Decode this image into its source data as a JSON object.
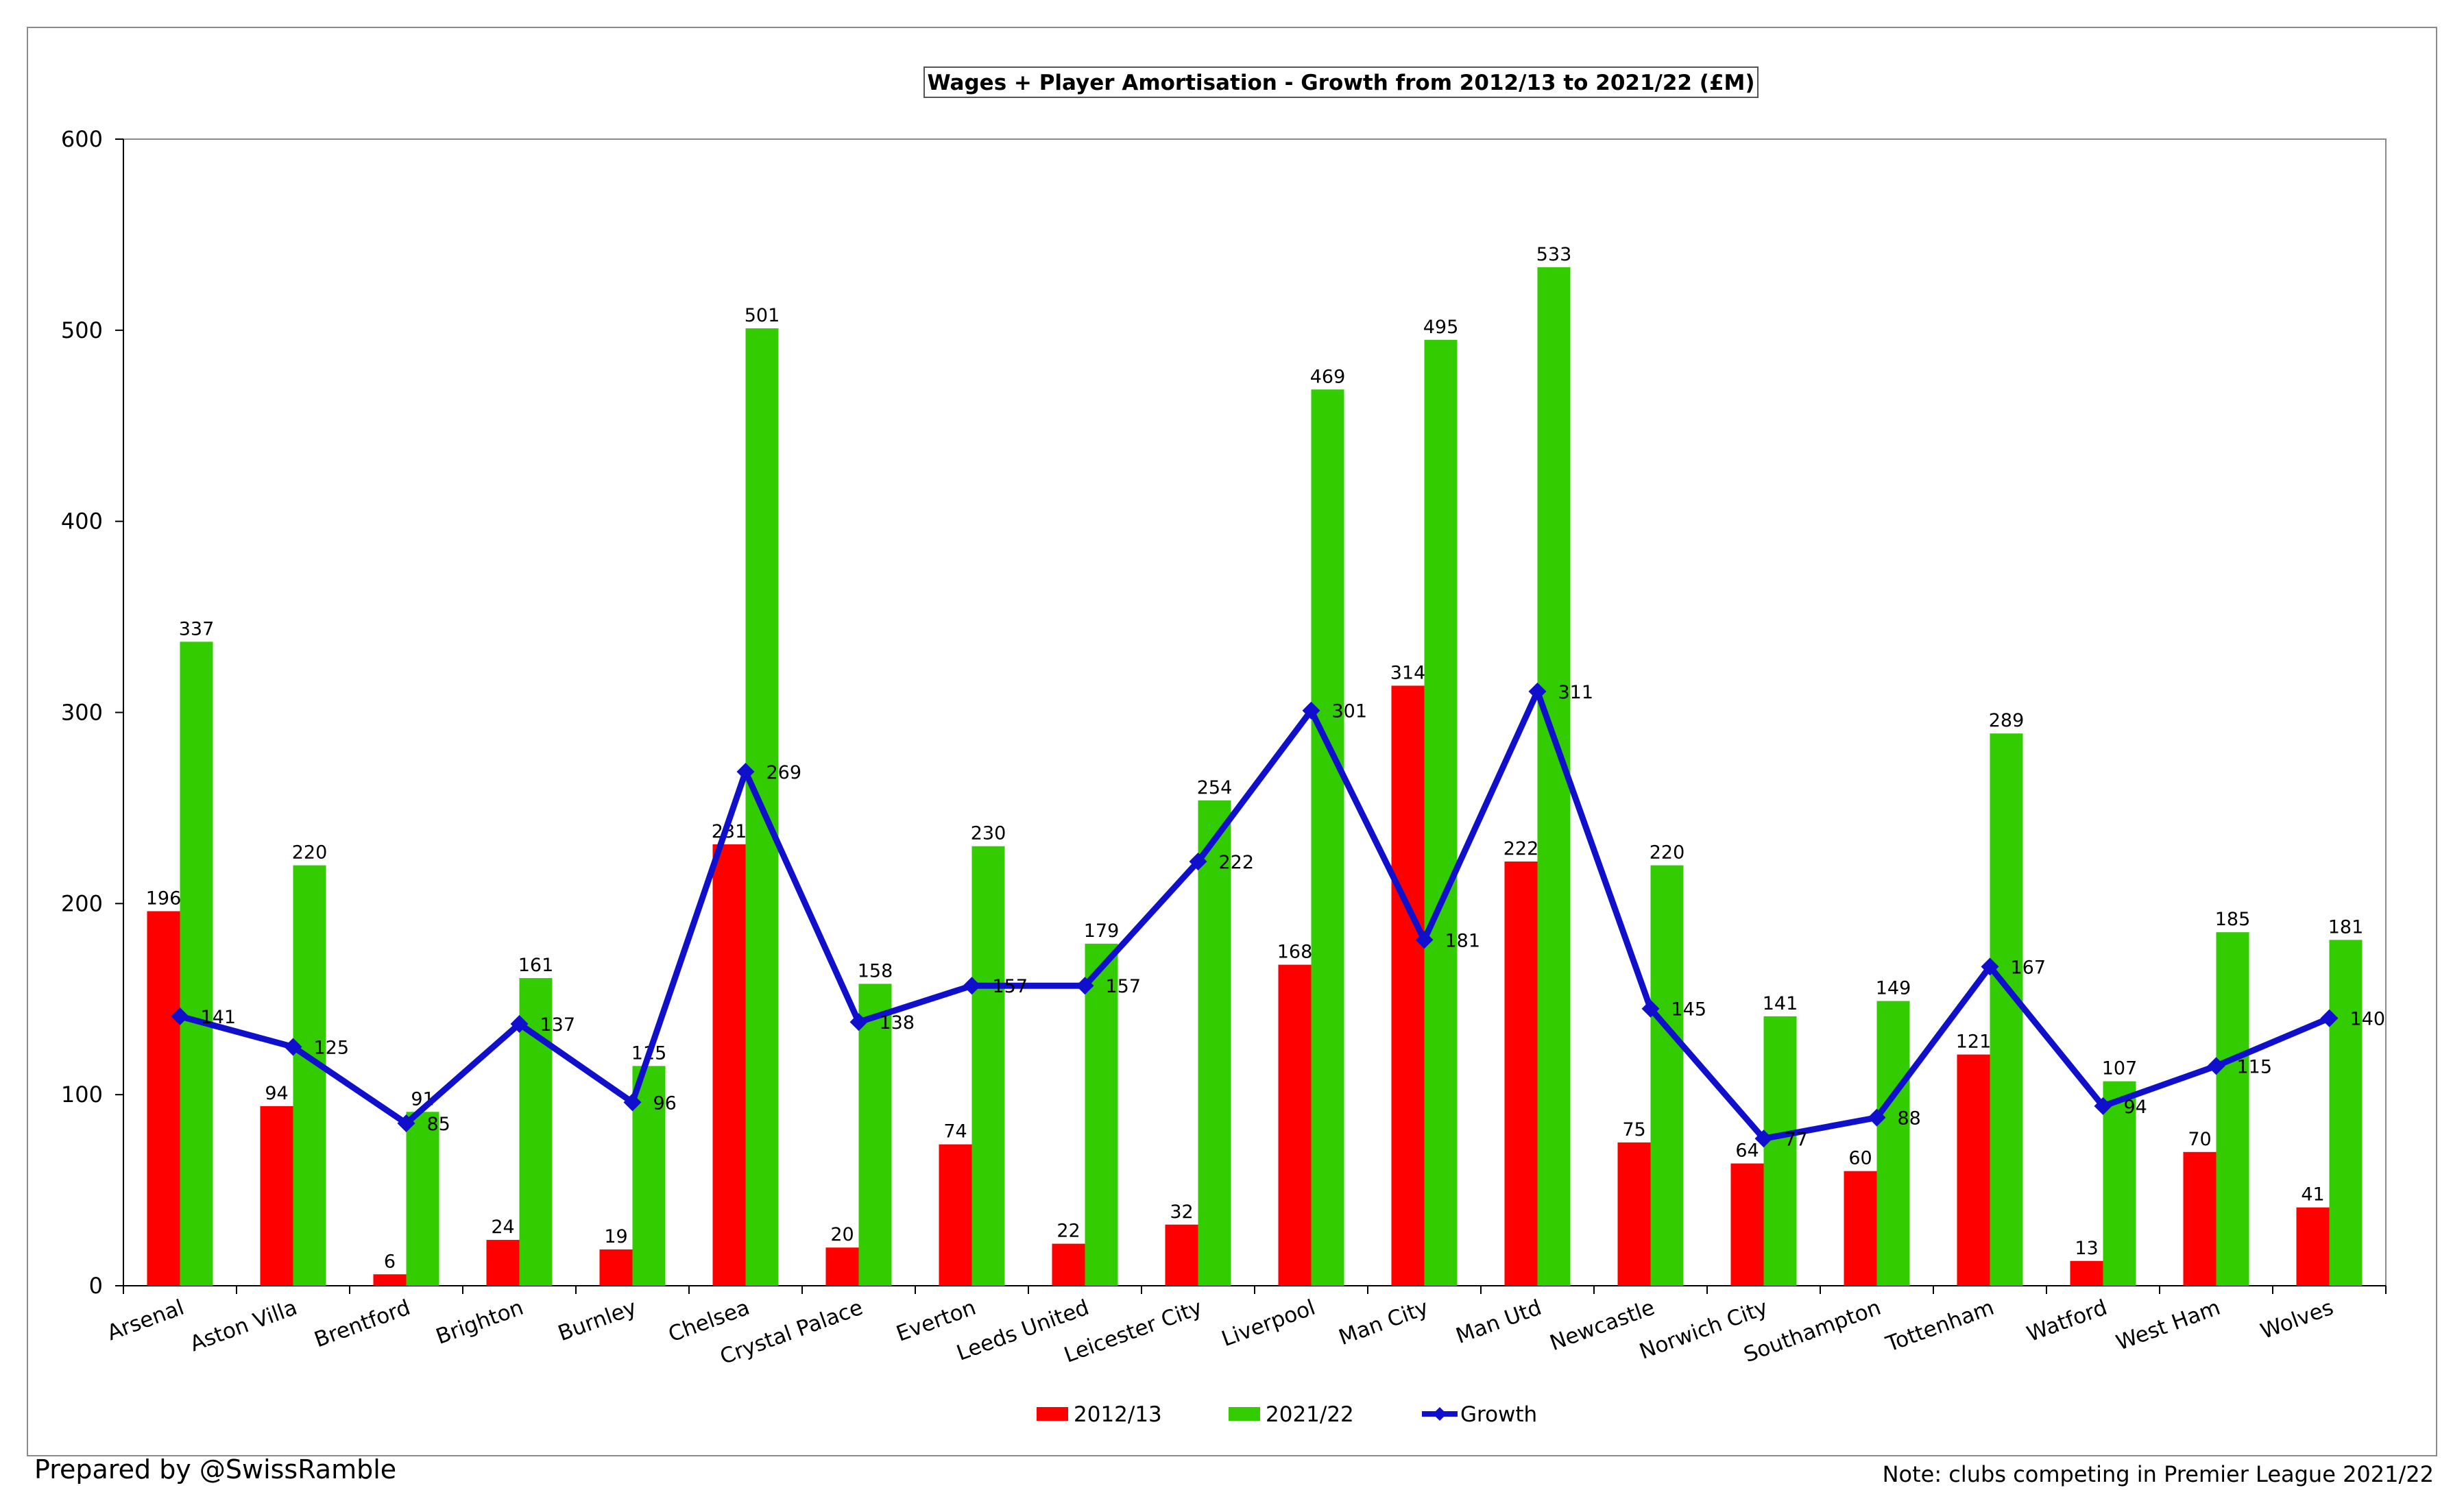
{
  "footer": {
    "credit": "Prepared by @SwissRamble",
    "note": "Note: clubs competing in Premier League 2021/22"
  },
  "chart_data": {
    "type": "bar",
    "title": "Wages + Player Amortisation - Growth from 2012/13 to 2021/22 (£M)",
    "xlabel": "",
    "ylabel": "",
    "ylim": [
      0,
      600
    ],
    "yticks": [
      0,
      100,
      200,
      300,
      400,
      500,
      600
    ],
    "grid": false,
    "legend_position": "bottom",
    "categories": [
      "Arsenal",
      "Aston Villa",
      "Brentford",
      "Brighton",
      "Burnley",
      "Chelsea",
      "Crystal Palace",
      "Everton",
      "Leeds United",
      "Leicester City",
      "Liverpool",
      "Man City",
      "Man Utd",
      "Newcastle",
      "Norwich City",
      "Southampton",
      "Tottenham",
      "Watford",
      "West Ham",
      "Wolves"
    ],
    "series": [
      {
        "name": "2012/13",
        "type": "bar",
        "color": "#ff0000",
        "values": [
          196,
          94,
          6,
          24,
          19,
          231,
          20,
          74,
          22,
          32,
          168,
          314,
          222,
          75,
          64,
          60,
          121,
          13,
          70,
          41
        ]
      },
      {
        "name": "2021/22",
        "type": "bar",
        "color": "#33cc00",
        "values": [
          337,
          220,
          91,
          161,
          115,
          501,
          158,
          230,
          179,
          254,
          469,
          495,
          533,
          220,
          141,
          149,
          289,
          107,
          185,
          181
        ]
      },
      {
        "name": "Growth",
        "type": "line",
        "color": "#1010cc",
        "values": [
          141,
          125,
          85,
          137,
          96,
          269,
          138,
          157,
          157,
          222,
          301,
          181,
          311,
          145,
          77,
          88,
          167,
          94,
          115,
          140
        ]
      }
    ]
  }
}
